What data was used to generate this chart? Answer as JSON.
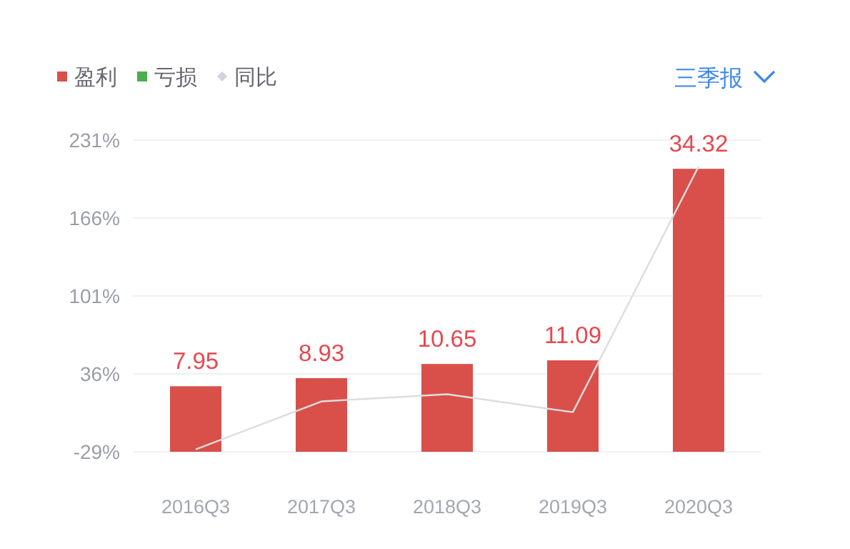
{
  "chart_data": {
    "type": "bar",
    "categories": [
      "2016Q3",
      "2017Q3",
      "2018Q3",
      "2019Q3",
      "2020Q3"
    ],
    "series": [
      {
        "name": "盈利",
        "axis": "y2",
        "color": "#d9504a",
        "values": [
          7.95,
          8.93,
          10.65,
          11.09,
          34.32
        ],
        "value_labels": [
          "7.95",
          "8.93",
          "10.65",
          "11.09",
          "34.32"
        ]
      },
      {
        "name": "亏损",
        "axis": "y2",
        "color": "#4cae4f",
        "values": [
          null,
          null,
          null,
          null,
          null
        ]
      },
      {
        "name": "同比",
        "type": "line",
        "axis": "y",
        "color": "#dddddd",
        "values": [
          -27,
          13,
          19,
          4,
          209
        ]
      }
    ],
    "ylim": [
      -29,
      231
    ],
    "yticks": [
      {
        "value": -29,
        "label": "-29%"
      },
      {
        "value": 36,
        "label": "36%"
      },
      {
        "value": 101,
        "label": "101%"
      },
      {
        "value": 166,
        "label": "166%"
      },
      {
        "value": 231,
        "label": "231%"
      }
    ],
    "y2lim": [
      0,
      37.8
    ],
    "tick_labels": "y",
    "grid": "y",
    "legend": "top left",
    "marker": "none",
    "annotations": [
      "三季报"
    ]
  }
}
